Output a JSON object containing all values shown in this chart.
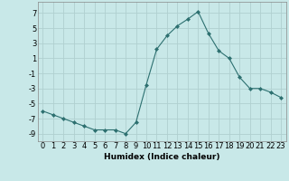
{
  "x": [
    0,
    1,
    2,
    3,
    4,
    5,
    6,
    7,
    8,
    9,
    10,
    11,
    12,
    13,
    14,
    15,
    16,
    17,
    18,
    19,
    20,
    21,
    22,
    23
  ],
  "y": [
    -6,
    -6.5,
    -7,
    -7.5,
    -8,
    -8.5,
    -8.5,
    -8.5,
    -9,
    -7.5,
    -2.5,
    2.2,
    4,
    5.3,
    6.2,
    7.2,
    4.3,
    2.0,
    1.0,
    -1.5,
    -3.0,
    -3.0,
    -3.5,
    -4.2
  ],
  "line_color": "#2d7070",
  "marker": "D",
  "marker_size": 2.0,
  "bg_color": "#c8e8e8",
  "grid_color": "#b0d0d0",
  "xlabel": "Humidex (Indice chaleur)",
  "xlim": [
    -0.5,
    23.5
  ],
  "ylim": [
    -10,
    8.5
  ],
  "yticks": [
    -9,
    -7,
    -5,
    -3,
    -1,
    1,
    3,
    5,
    7
  ],
  "xticks": [
    0,
    1,
    2,
    3,
    4,
    5,
    6,
    7,
    8,
    9,
    10,
    11,
    12,
    13,
    14,
    15,
    16,
    17,
    18,
    19,
    20,
    21,
    22,
    23
  ],
  "label_fontsize": 6.5,
  "tick_fontsize": 6.0
}
